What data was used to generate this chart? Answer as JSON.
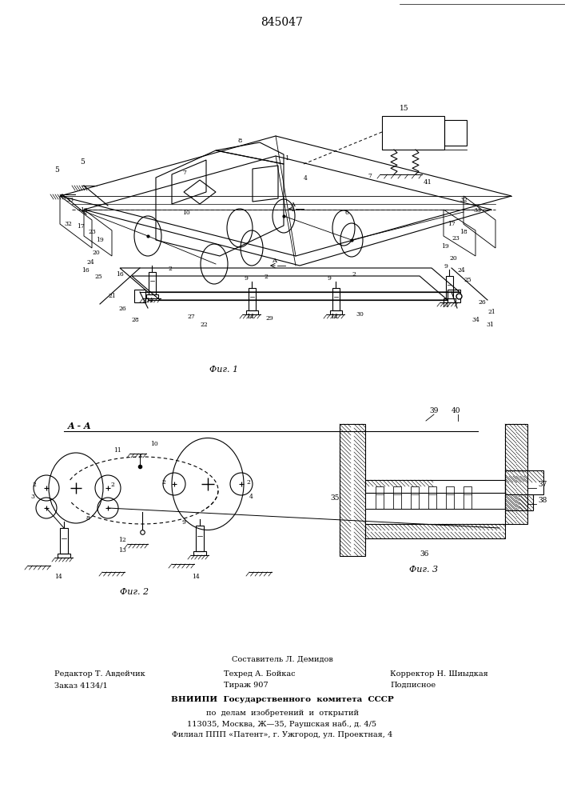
{
  "patent_number": "845047",
  "background_color": "#ffffff",
  "line_color": "#000000",
  "fig1_caption": "Фиг. 1",
  "fig2_caption": "Фиг. 2",
  "fig3_caption": "Фиг. 3",
  "section_label": "A - A",
  "footer_composer": "Составитель Л. Демидов",
  "footer_line1_left": "Редактор Т. Авдейчик",
  "footer_line2_left": "Заказ 4134/1",
  "footer_line1_center": "Техред А. Бойкас",
  "footer_line2_center": "Тираж 907",
  "footer_line1_right": "Корректор Н. Шиыдкая",
  "footer_line2_right": "Подписное",
  "footer_org1": "ВНИИПИ  Государственного  комитета  СССР",
  "footer_org2": "по  делам  изобретений  и  открытий",
  "footer_org3": "113035, Москва, Ж—35, Раушская наб., д. 4/5",
  "footer_org4": "Филиал ППП «Патент», г. Ужгород, ул. Проектная, 4"
}
